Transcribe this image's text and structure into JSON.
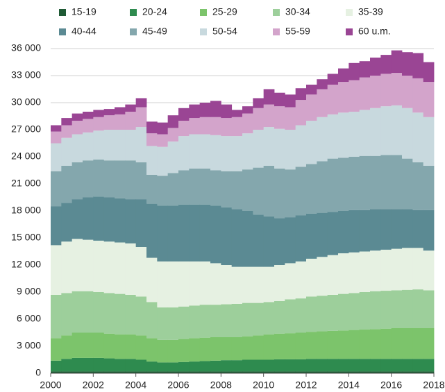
{
  "chart_data": {
    "type": "stacked-column",
    "x": [
      2000,
      2000.5,
      2001,
      2001.5,
      2002,
      2002.5,
      2003,
      2003.5,
      2004,
      2004.5,
      2005,
      2005.5,
      2006,
      2006.5,
      2007,
      2007.5,
      2008,
      2008.5,
      2009,
      2009.5,
      2010,
      2010.5,
      2011,
      2011.5,
      2012,
      2012.5,
      2013,
      2013.5,
      2014,
      2014.5,
      2015,
      2015.5,
      2016,
      2016.5,
      2017,
      2017.5
    ],
    "series": [
      {
        "name": "15-19",
        "color": "#1f5a35",
        "values": [
          200,
          200,
          200,
          200,
          200,
          200,
          200,
          200,
          200,
          200,
          200,
          200,
          200,
          200,
          200,
          200,
          200,
          200,
          200,
          200,
          200,
          200,
          200,
          200,
          200,
          200,
          200,
          200,
          200,
          200,
          200,
          200,
          200,
          200,
          200,
          200
        ]
      },
      {
        "name": "20-24",
        "color": "#2e8b4f",
        "values": [
          1200,
          1400,
          1500,
          1500,
          1500,
          1450,
          1400,
          1400,
          1300,
          1100,
          1000,
          1000,
          1050,
          1100,
          1150,
          1200,
          1250,
          1250,
          1300,
          1300,
          1300,
          1350,
          1350,
          1350,
          1400,
          1400,
          1400,
          1400,
          1400,
          1400,
          1400,
          1400,
          1400,
          1400,
          1400,
          1400
        ]
      },
      {
        "name": "25-29",
        "color": "#7cc46b",
        "values": [
          2500,
          2600,
          2800,
          2800,
          2800,
          2750,
          2700,
          2700,
          2700,
          2600,
          2500,
          2500,
          2550,
          2600,
          2600,
          2600,
          2550,
          2550,
          2600,
          2700,
          2800,
          2850,
          2900,
          2950,
          3000,
          3050,
          3100,
          3150,
          3200,
          3250,
          3300,
          3350,
          3400,
          3400,
          3400,
          3400
        ]
      },
      {
        "name": "30-34",
        "color": "#9dcf9b",
        "values": [
          4800,
          4700,
          4600,
          4600,
          4500,
          4500,
          4500,
          4400,
          4300,
          4000,
          3600,
          3600,
          3600,
          3600,
          3650,
          3600,
          3650,
          3700,
          3700,
          3600,
          3600,
          3600,
          3750,
          3800,
          3900,
          3950,
          4000,
          4050,
          4100,
          4150,
          4200,
          4200,
          4200,
          4250,
          4300,
          4200
        ]
      },
      {
        "name": "35-39",
        "color": "#e6f1e2",
        "values": [
          5500,
          5700,
          5800,
          5700,
          5700,
          5700,
          5700,
          5700,
          5500,
          4900,
          5100,
          5100,
          5000,
          4900,
          4800,
          4600,
          4350,
          4100,
          4000,
          4000,
          3900,
          4000,
          4000,
          4100,
          4200,
          4300,
          4400,
          4500,
          4500,
          4500,
          4500,
          4550,
          4600,
          4650,
          4600,
          4400
        ]
      },
      {
        "name": "40-44",
        "color": "#5b8a93",
        "values": [
          4300,
          4300,
          4400,
          4700,
          4900,
          4900,
          4900,
          4900,
          5300,
          6000,
          6200,
          6200,
          6300,
          6300,
          6300,
          6400,
          6400,
          6400,
          6200,
          5800,
          5600,
          5200,
          5100,
          5100,
          5000,
          4900,
          4800,
          4700,
          4700,
          4600,
          4600,
          4500,
          4400,
          4300,
          4200,
          4500
        ]
      },
      {
        "name": "45-49",
        "color": "#84a7ad",
        "values": [
          3900,
          4100,
          4100,
          4100,
          4100,
          4100,
          4200,
          4300,
          4100,
          3200,
          3300,
          3600,
          3800,
          4000,
          4000,
          3900,
          4000,
          4200,
          4600,
          5200,
          5600,
          5500,
          5300,
          5400,
          5500,
          5700,
          5900,
          5900,
          5900,
          6000,
          5900,
          6000,
          6000,
          5600,
          5300,
          4900
        ]
      },
      {
        "name": "50-54",
        "color": "#c8d9de",
        "values": [
          3100,
          3100,
          3100,
          3100,
          3200,
          3400,
          3400,
          3400,
          3900,
          3200,
          3200,
          3500,
          3800,
          3800,
          3800,
          3900,
          3900,
          3900,
          4000,
          4200,
          4300,
          4400,
          4400,
          4600,
          4800,
          4900,
          4900,
          5000,
          5000,
          5100,
          5300,
          5400,
          5500,
          5600,
          5500,
          5400
        ]
      },
      {
        "name": "55-59",
        "color": "#d3a4cb",
        "values": [
          1300,
          1400,
          1500,
          1500,
          1500,
          1600,
          1700,
          2000,
          2200,
          1400,
          1400,
          1500,
          1700,
          1800,
          1900,
          2000,
          2000,
          2100,
          2200,
          2400,
          2500,
          2500,
          2500,
          2800,
          2900,
          3100,
          3300,
          3400,
          3500,
          3600,
          3600,
          3600,
          3600,
          3600,
          3800,
          3900
        ]
      },
      {
        "name": "60 u.m.",
        "color": "#9a4594",
        "values": [
          700,
          800,
          800,
          800,
          800,
          700,
          800,
          800,
          1000,
          1300,
          1300,
          1400,
          1400,
          1500,
          1600,
          1800,
          1500,
          800,
          800,
          1100,
          1700,
          1500,
          1400,
          1300,
          1100,
          1100,
          1200,
          1500,
          1900,
          1800,
          2000,
          2100,
          2500,
          2600,
          2800,
          2200
        ]
      }
    ],
    "xlim": [
      2000,
      2018
    ],
    "xticks": [
      2000,
      2002,
      2004,
      2006,
      2008,
      2010,
      2012,
      2014,
      2016,
      2018
    ],
    "ylim": [
      0,
      36000
    ],
    "yticks": [
      0,
      {
        "value": 3000,
        "label": "3 000"
      },
      {
        "value": 6000,
        "label": "6 000"
      },
      {
        "value": 9000,
        "label": "9 000"
      },
      {
        "value": 12000,
        "label": "12 000"
      },
      {
        "value": 15000,
        "label": "15 000"
      },
      {
        "value": 18000,
        "label": "18 000"
      },
      {
        "value": 21000,
        "label": "21 000"
      },
      {
        "value": 24000,
        "label": "24 000"
      },
      {
        "value": 27000,
        "label": "27 000"
      },
      {
        "value": 30000,
        "label": "30 000"
      },
      {
        "value": 33000,
        "label": "33 000"
      },
      {
        "value": 36000,
        "label": "36 000"
      }
    ],
    "grid": true,
    "legend": "top"
  }
}
